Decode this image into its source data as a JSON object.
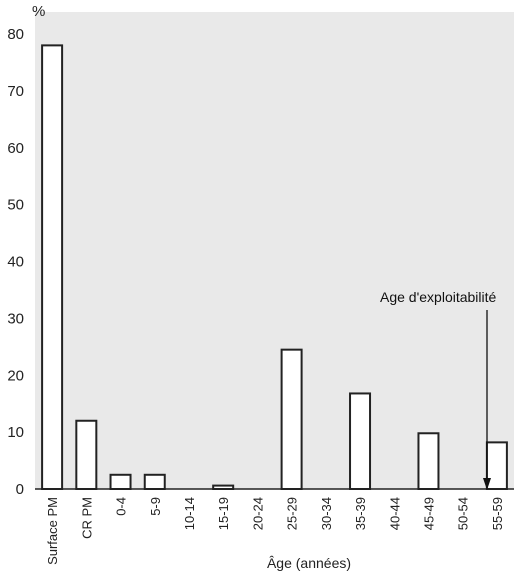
{
  "chart_data": {
    "type": "bar",
    "categories": [
      "Surface PM",
      "CR PM",
      "0-4",
      "5-9",
      "10-14",
      "15-19",
      "20-24",
      "25-29",
      "30-34",
      "35-39",
      "40-44",
      "45-49",
      "50-54",
      "55-59"
    ],
    "values": [
      78,
      12,
      2.5,
      2.5,
      0,
      0.6,
      0,
      24.5,
      0,
      16.8,
      0,
      9.8,
      0,
      8.2
    ],
    "xlabel": "Âge (années)",
    "ylabel": "%",
    "ylim": [
      0,
      80
    ],
    "yticks": [
      0,
      10,
      20,
      30,
      40,
      50,
      60,
      70,
      80
    ],
    "annotation": {
      "text": "Age d'exploitabilité",
      "position": "between 50-54 and 55-59, arrow pointing down to x-axis"
    },
    "grid": false,
    "legend": "none",
    "colors": {
      "bar_fill": "#ffffff",
      "bar_stroke": "#222222",
      "background": "#e9e9e9",
      "axis": "#222222"
    }
  }
}
